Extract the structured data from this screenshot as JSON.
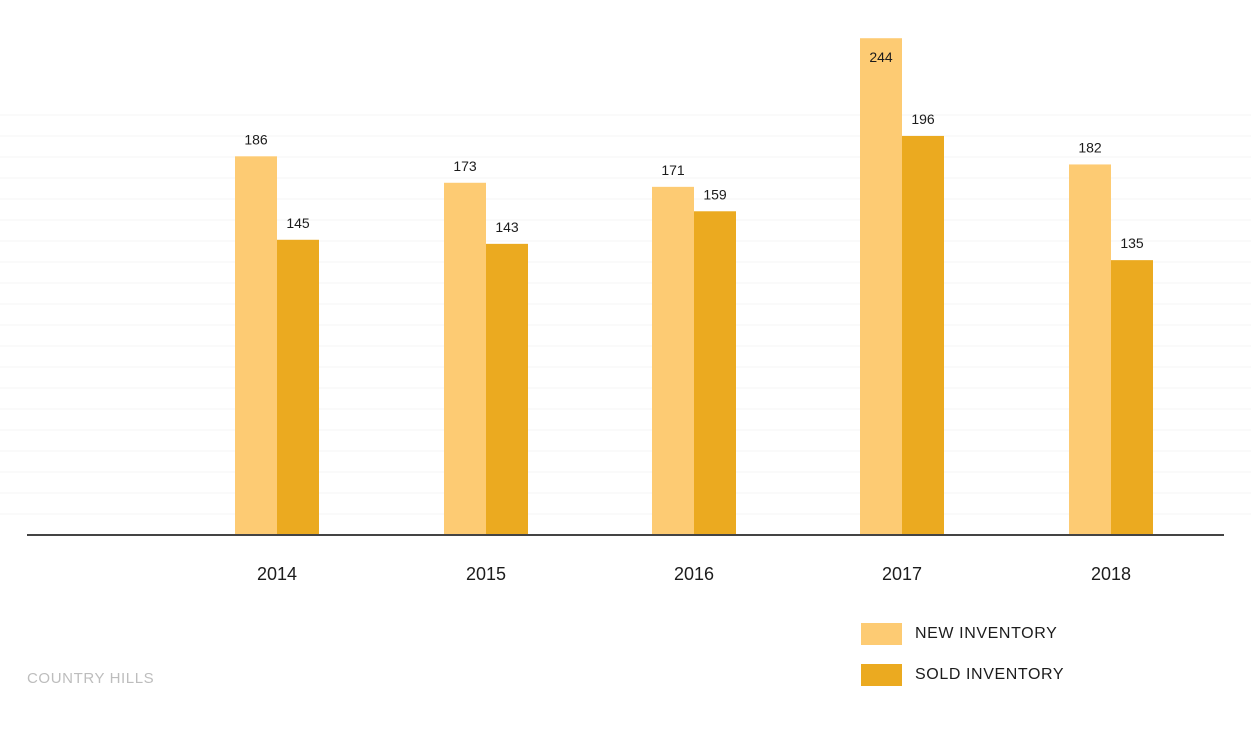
{
  "chart_data": {
    "type": "bar",
    "categories": [
      "2014",
      "2015",
      "2016",
      "2017",
      "2018"
    ],
    "series": [
      {
        "name": "NEW INVENTORY",
        "values": [
          186,
          173,
          171,
          244,
          182
        ],
        "color": "#FDCB73"
      },
      {
        "name": "SOLD INVENTORY",
        "values": [
          145,
          143,
          159,
          196,
          135
        ],
        "color": "#EBAA20"
      }
    ],
    "ylim": [
      0,
      250
    ],
    "grid": true,
    "legend_position": "bottom-right"
  },
  "footer": {
    "label": "COUNTRY HILLS"
  },
  "colors": {
    "axis": "#444444",
    "grid": "#f4f4f4",
    "text": "#1c1c1c"
  }
}
